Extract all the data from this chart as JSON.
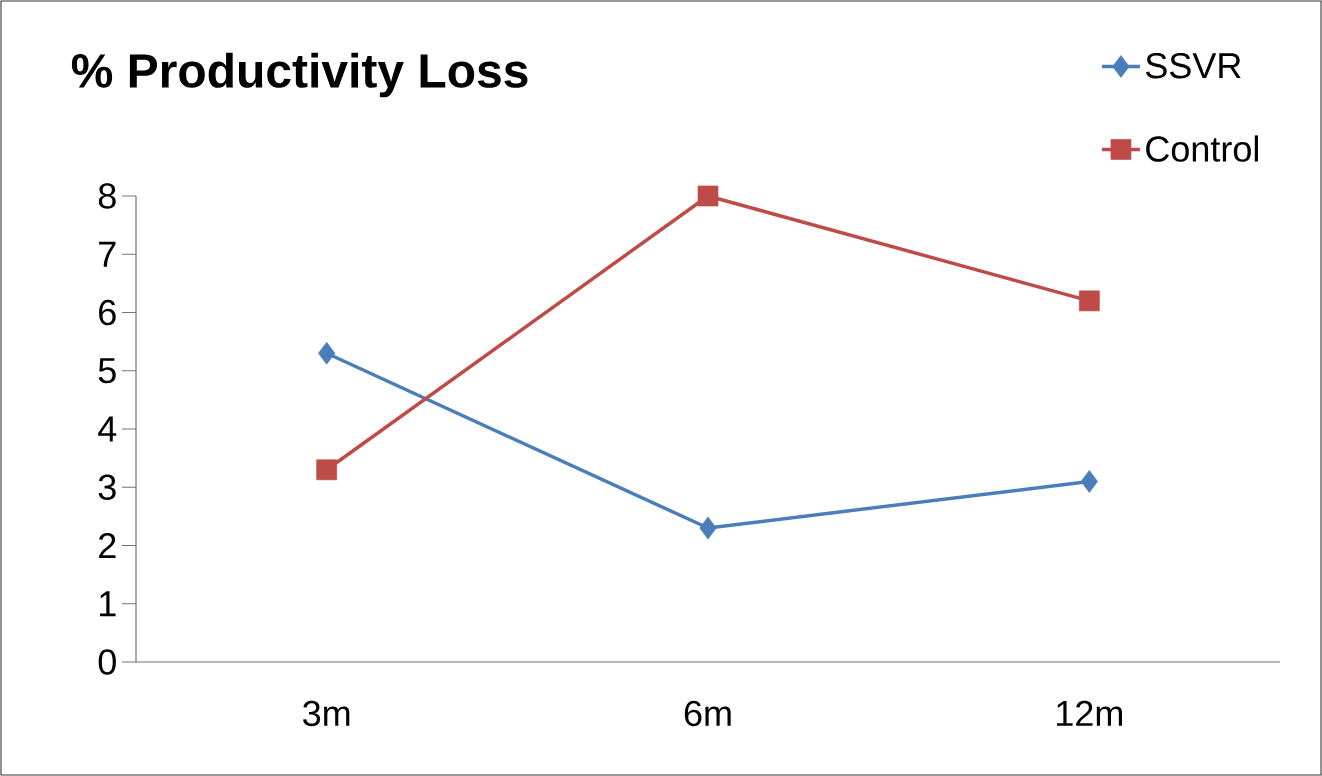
{
  "chart_data": {
    "type": "line",
    "title": "% Productivity Loss",
    "categories": [
      "3m",
      "6m",
      "12m"
    ],
    "series": [
      {
        "name": "SSVR",
        "color": "#4a7ebb",
        "marker": "diamond",
        "values": [
          5.3,
          2.3,
          3.1
        ]
      },
      {
        "name": "Control",
        "color": "#be4b48",
        "marker": "square",
        "values": [
          3.3,
          8,
          6.2
        ]
      }
    ],
    "ylim": [
      0,
      8
    ],
    "yticks": [
      0,
      1,
      2,
      3,
      4,
      5,
      6,
      7,
      8
    ],
    "legend": "top right"
  }
}
